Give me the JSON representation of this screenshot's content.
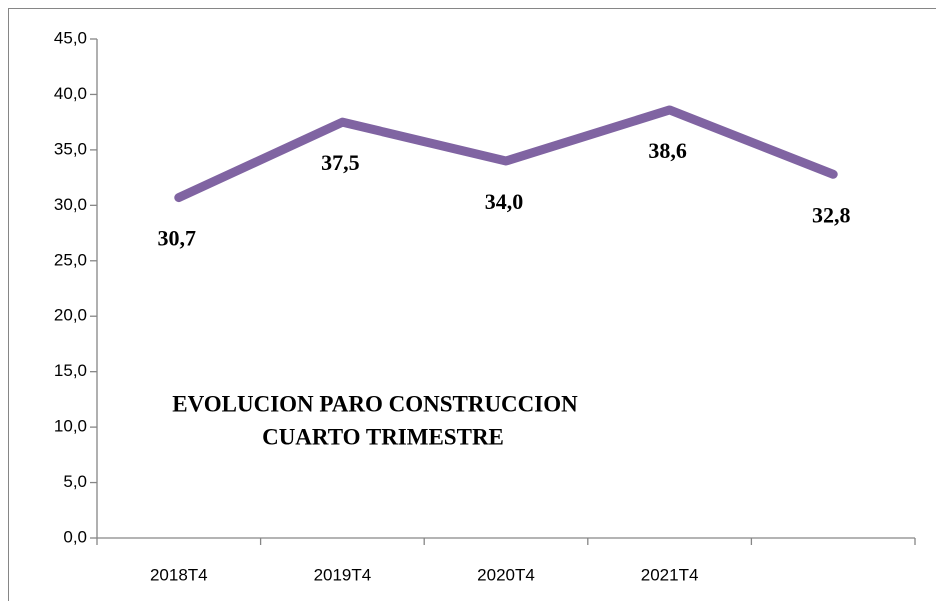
{
  "chart_data": {
    "type": "line",
    "title": [
      "EVOLUCION PARO CONSTRUCCION",
      "CUARTO TRIMESTRE"
    ],
    "categories": [
      "2018T4",
      "2019T4",
      "2020T4",
      "2021T4",
      null
    ],
    "series": [
      {
        "name": null,
        "color": "#8064a2",
        "values": [
          30.7,
          37.5,
          34.0,
          38.6,
          32.8
        ],
        "value_labels": [
          "30,7",
          "37,5",
          "34,0",
          "38,6",
          "32,8"
        ]
      }
    ],
    "ylim": [
      0,
      45
    ],
    "yticks": [
      {
        "value": 0,
        "label": "0,0"
      },
      {
        "value": 5,
        "label": "5,0"
      },
      {
        "value": 10,
        "label": "10,0"
      },
      {
        "value": 15,
        "label": "15,0"
      },
      {
        "value": 20,
        "label": "20,0"
      },
      {
        "value": 25,
        "label": "25,0"
      },
      {
        "value": 30,
        "label": "30,0"
      },
      {
        "value": 35,
        "label": "35,0"
      },
      {
        "value": 40,
        "label": "40,0"
      },
      {
        "value": 45,
        "label": "45,0"
      }
    ],
    "grid": false
  }
}
